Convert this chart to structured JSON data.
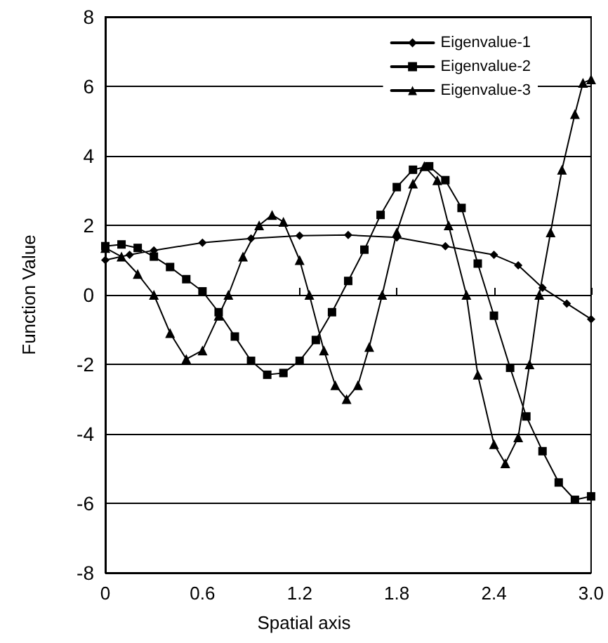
{
  "chart_data": {
    "type": "line",
    "xlabel": "Spatial axis",
    "ylabel": "Function Value",
    "xlim": [
      0,
      3
    ],
    "xticks": [
      0,
      0.6,
      1.2,
      1.8,
      2.4,
      {
        "value": 3,
        "label": "3.0"
      }
    ],
    "ylim": [
      -8,
      8
    ],
    "yticks": [
      -8,
      -6,
      -4,
      -2,
      0,
      2,
      4,
      6,
      8
    ],
    "grid": "y",
    "legend": "top right",
    "line_style": "solid",
    "series": [
      {
        "name": "Eigenvalue-1",
        "color": "#000000",
        "marker": "diamond",
        "x": [
          0,
          0.15,
          0.3,
          0.6,
          0.9,
          1.2,
          1.5,
          1.8,
          2.1,
          2.4,
          2.55,
          2.7,
          2.85,
          3.0
        ],
        "values": [
          1.0,
          1.15,
          1.28,
          1.5,
          1.62,
          1.7,
          1.72,
          1.65,
          1.4,
          1.15,
          0.85,
          0.2,
          -0.25,
          -0.7
        ]
      },
      {
        "name": "Eigenvalue-2",
        "color": "#000000",
        "marker": "square",
        "x": [
          0,
          0.1,
          0.2,
          0.3,
          0.4,
          0.5,
          0.6,
          0.7,
          0.8,
          0.9,
          1.0,
          1.1,
          1.2,
          1.3,
          1.4,
          1.5,
          1.6,
          1.7,
          1.8,
          1.9,
          2.0,
          2.1,
          2.2,
          2.3,
          2.4,
          2.5,
          2.6,
          2.7,
          2.8,
          2.9,
          3.0
        ],
        "values": [
          1.4,
          1.45,
          1.35,
          1.1,
          0.8,
          0.45,
          0.1,
          -0.5,
          -1.2,
          -1.9,
          -2.3,
          -2.25,
          -1.9,
          -1.3,
          -0.5,
          0.4,
          1.3,
          2.3,
          3.1,
          3.6,
          3.7,
          3.3,
          2.5,
          0.9,
          -0.6,
          -2.1,
          -3.5,
          -4.5,
          -5.4,
          -5.9,
          -5.8
        ]
      },
      {
        "name": "Eigenvalue-3",
        "color": "#000000",
        "marker": "triangle",
        "x": [
          0,
          0.1,
          0.2,
          0.3,
          0.4,
          0.5,
          0.6,
          0.7,
          0.76,
          0.85,
          0.95,
          1.03,
          1.1,
          1.2,
          1.26,
          1.35,
          1.42,
          1.49,
          1.56,
          1.63,
          1.71,
          1.8,
          1.9,
          1.97,
          2.05,
          2.12,
          2.23,
          2.3,
          2.4,
          2.47,
          2.55,
          2.62,
          2.68,
          2.75,
          2.82,
          2.9,
          2.95,
          3.0
        ],
        "values": [
          1.35,
          1.1,
          0.6,
          0,
          -1.1,
          -1.85,
          -1.6,
          -0.6,
          0,
          1.1,
          2.0,
          2.3,
          2.1,
          1.0,
          0,
          -1.6,
          -2.6,
          -3.0,
          -2.6,
          -1.5,
          0,
          1.8,
          3.2,
          3.7,
          3.3,
          2.0,
          0,
          -2.3,
          -4.3,
          -4.85,
          -4.1,
          -2.0,
          0,
          1.8,
          3.6,
          5.2,
          6.1,
          6.2
        ]
      }
    ]
  }
}
